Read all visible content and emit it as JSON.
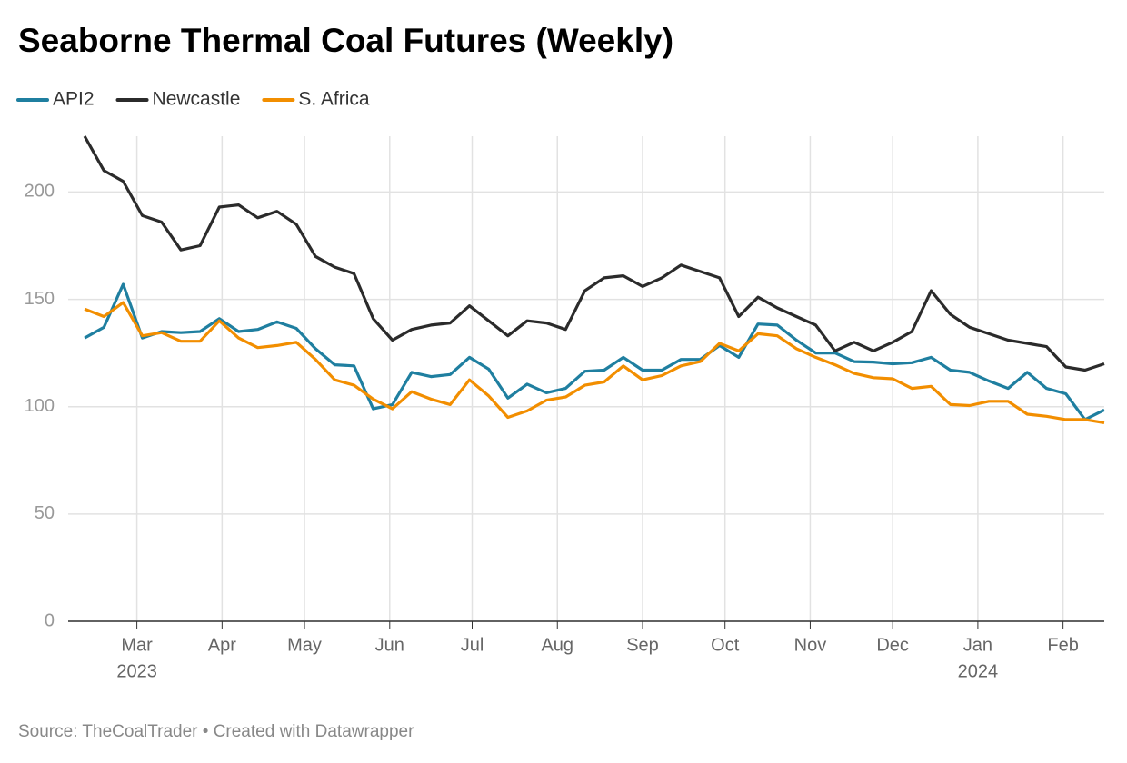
{
  "chart_data": {
    "type": "line",
    "title": "Seaborne Thermal Coal Futures (Weekly)",
    "source": "Source: TheCoalTrader • Created with Datawrapper",
    "x": [
      "2023-02-10",
      "2023-02-17",
      "2023-02-24",
      "2023-03-03",
      "2023-03-10",
      "2023-03-17",
      "2023-03-24",
      "2023-03-31",
      "2023-04-07",
      "2023-04-14",
      "2023-04-21",
      "2023-04-28",
      "2023-05-05",
      "2023-05-12",
      "2023-05-19",
      "2023-05-26",
      "2023-06-02",
      "2023-06-09",
      "2023-06-16",
      "2023-06-23",
      "2023-06-30",
      "2023-07-07",
      "2023-07-14",
      "2023-07-21",
      "2023-07-28",
      "2023-08-04",
      "2023-08-11",
      "2023-08-18",
      "2023-08-25",
      "2023-09-01",
      "2023-09-08",
      "2023-09-15",
      "2023-09-22",
      "2023-09-29",
      "2023-10-06",
      "2023-10-13",
      "2023-10-20",
      "2023-10-27",
      "2023-11-03",
      "2023-11-10",
      "2023-11-17",
      "2023-11-24",
      "2023-12-01",
      "2023-12-08",
      "2023-12-15",
      "2023-12-22",
      "2023-12-29",
      "2024-01-05",
      "2024-01-12",
      "2024-01-19",
      "2024-01-26",
      "2024-02-02",
      "2024-02-09",
      "2024-02-16"
    ],
    "series": [
      {
        "name": "API2",
        "color": "#1f7fa0",
        "values": [
          132,
          137,
          157,
          132,
          135,
          134.5,
          135,
          141,
          135,
          136,
          139.5,
          136.5,
          127,
          119.5,
          119,
          99,
          101,
          116,
          114,
          115,
          123,
          117.5,
          104,
          110.5,
          106.5,
          108.5,
          116.5,
          117,
          123,
          117,
          117,
          122,
          122,
          128.5,
          123,
          138.5,
          138,
          131,
          125,
          125,
          121,
          120.8,
          120,
          120.5,
          123,
          117,
          116,
          112,
          108.5,
          116,
          108.5,
          106,
          94,
          98.5
        ]
      },
      {
        "name": "Newcastle",
        "color": "#2b2b2b",
        "values": [
          226,
          210,
          205,
          189,
          186,
          173,
          175,
          193,
          194,
          188,
          191,
          185,
          170,
          165,
          162,
          141,
          131,
          136,
          138,
          139,
          147,
          140,
          133,
          140,
          139,
          136,
          154,
          160,
          161,
          156,
          160,
          166,
          163,
          160,
          142,
          151,
          146,
          142,
          138,
          126,
          130,
          126,
          130,
          135,
          154,
          143,
          137,
          134,
          131,
          129.5,
          128,
          118.5,
          117,
          120
        ]
      },
      {
        "name": "S. Africa",
        "color": "#f28e00",
        "values": [
          145.5,
          142,
          148.5,
          133,
          134.5,
          130.5,
          130.5,
          140,
          132,
          127.5,
          128.5,
          130,
          122,
          112.5,
          110,
          103.5,
          99,
          107,
          103.5,
          101,
          112.5,
          105,
          95,
          98,
          103,
          104.5,
          110,
          111.5,
          119,
          112.5,
          114.5,
          119,
          121,
          129.5,
          126,
          134,
          133,
          127,
          123,
          119.5,
          115.5,
          113.5,
          113,
          108.5,
          109.5,
          101,
          100.5,
          102.5,
          102.5,
          96.5,
          95.5,
          94,
          94,
          92.5
        ]
      }
    ],
    "xlim": [
      "2023-02-04",
      "2024-02-16"
    ],
    "xticks": [
      {
        "value": "2023-03-01",
        "label": "Mar"
      },
      {
        "value": "2023-04-01",
        "label": "Apr"
      },
      {
        "value": "2023-05-01",
        "label": "May"
      },
      {
        "value": "2023-06-01",
        "label": "Jun"
      },
      {
        "value": "2023-07-01",
        "label": "Jul"
      },
      {
        "value": "2023-08-01",
        "label": "Aug"
      },
      {
        "value": "2023-09-01",
        "label": "Sep"
      },
      {
        "value": "2023-10-01",
        "label": "Oct"
      },
      {
        "value": "2023-11-01",
        "label": "Nov"
      },
      {
        "value": "2023-12-01",
        "label": "Dec"
      },
      {
        "value": "2024-01-01",
        "label": "Jan"
      },
      {
        "value": "2024-02-01",
        "label": "Feb"
      }
    ],
    "xtick_years": [
      {
        "value": "2023-03-01",
        "label": "2023"
      },
      {
        "value": "2024-01-01",
        "label": "2024"
      }
    ],
    "ylim": [
      0,
      226
    ],
    "yticks": [
      0,
      50,
      100,
      150,
      200
    ],
    "grid": true,
    "legend": "top-left"
  }
}
